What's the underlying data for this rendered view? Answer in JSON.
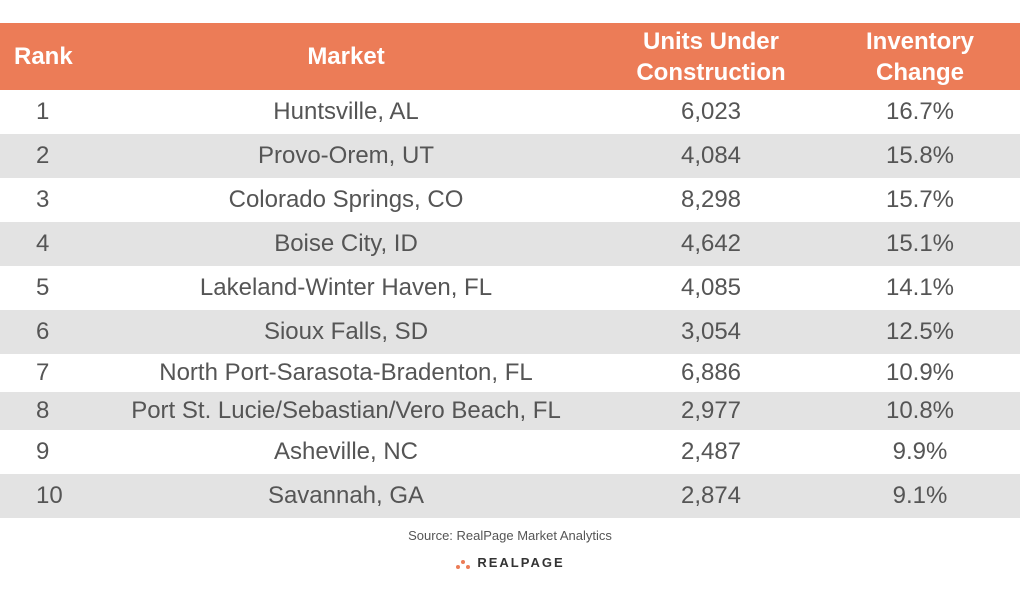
{
  "chart_data": {
    "type": "table",
    "columns": [
      "Rank",
      "Market",
      "Units Under Construction",
      "Inventory Change"
    ],
    "rows": [
      {
        "rank": "1",
        "market": "Huntsville, AL",
        "units": "6,023",
        "change": "16.7%"
      },
      {
        "rank": "2",
        "market": "Provo-Orem, UT",
        "units": "4,084",
        "change": "15.8%"
      },
      {
        "rank": "3",
        "market": "Colorado Springs, CO",
        "units": "8,298",
        "change": "15.7%"
      },
      {
        "rank": "4",
        "market": "Boise City, ID",
        "units": "4,642",
        "change": "15.1%"
      },
      {
        "rank": "5",
        "market": "Lakeland-Winter Haven, FL",
        "units": "4,085",
        "change": "14.1%"
      },
      {
        "rank": "6",
        "market": "Sioux Falls, SD",
        "units": "3,054",
        "change": "12.5%"
      },
      {
        "rank": "7",
        "market": "North Port-Sarasota-Bradenton, FL",
        "units": "6,886",
        "change": "10.9%"
      },
      {
        "rank": "8",
        "market": "Port St. Lucie/Sebastian/Vero Beach, FL",
        "units": "2,977",
        "change": "10.8%"
      },
      {
        "rank": "9",
        "market": "Asheville, NC",
        "units": "2,487",
        "change": "9.9%"
      },
      {
        "rank": "10",
        "market": "Savannah, GA",
        "units": "2,874",
        "change": "9.1%"
      }
    ]
  },
  "header": {
    "rank": "Rank",
    "market": "Market",
    "units_line1": "Units Under",
    "units_line2": "Construction",
    "change_line1": "Inventory",
    "change_line2": "Change"
  },
  "footer": {
    "source": "Source: RealPage Market Analytics",
    "brand": "REALPAGE",
    "brand_mark": "",
    "trademark": "®"
  },
  "colors": {
    "header_bg": "#ec7c57",
    "header_text": "#ffffff",
    "row_alt_bg": "#e3e3e3",
    "body_text": "#555555",
    "logo_accent": "#ec7c57"
  }
}
